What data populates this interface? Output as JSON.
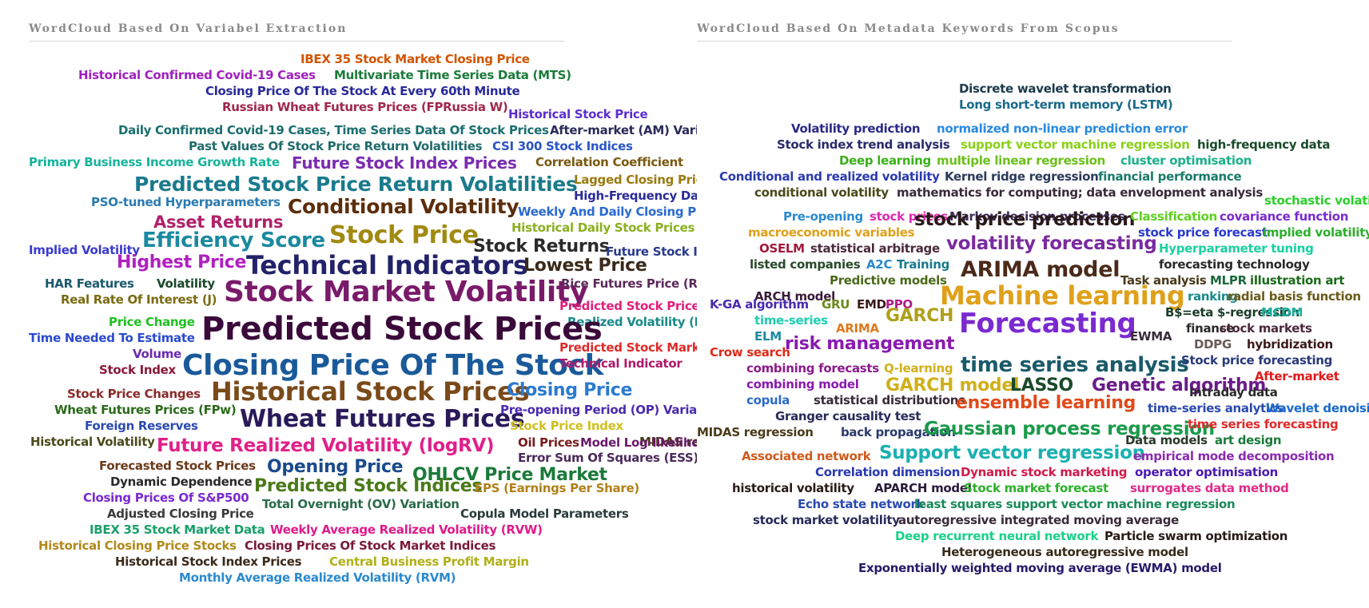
{
  "left": {
    "title": "WordCloud Based On Variabel Extraction",
    "words": [
      {
        "text": "IBEX 35 Stock Market Closing Price",
        "color": "#d35400"
      },
      {
        "text": "Historical Confirmed Covid-19 Cases",
        "color": "#a020c0"
      },
      {
        "text": "Multivariate Time Series Data (MTS)",
        "color": "#1b7a3a"
      },
      {
        "text": "Closing Price Of The Stock At Every 60th Minute",
        "color": "#2a2a9c"
      },
      {
        "text": "Russian Wheat Futures Prices (FPRussia W)",
        "color": "#a0284c"
      },
      {
        "text": "Historical Stock Price",
        "color": "#5b2fd0"
      },
      {
        "text": "Daily Confirmed Covid-19 Cases, Time Series Data Of Stock Prices",
        "color": "#1b6e6e"
      },
      {
        "text": "After-market (AM) Variation",
        "color": "#2a2a5a"
      },
      {
        "text": "Past Values Of Stock Price Return Volatilities",
        "color": "#216a6a"
      },
      {
        "text": "CSI 300 Stock Indices",
        "color": "#2a55c4"
      },
      {
        "text": "Primary Business Income Growth Rate",
        "color": "#16b39a"
      },
      {
        "text": "Future Stock Index Prices",
        "color": "#7a2bb0"
      },
      {
        "text": "Correlation Coefficient",
        "color": "#7a5a10"
      },
      {
        "text": "Predicted Stock Price Return Volatilities",
        "color": "#1a7a8c"
      },
      {
        "text": "Lagged Closing Prices",
        "color": "#9a7a10"
      },
      {
        "text": "PSO-tuned Hyperparameters",
        "color": "#2a7ab0"
      },
      {
        "text": "High-Frequency Data",
        "color": "#2a2a9c"
      },
      {
        "text": "Conditional Volatility",
        "color": "#5c2e0c"
      },
      {
        "text": "Asset Returns",
        "color": "#b0226a"
      },
      {
        "text": "Weekly And Daily Closing Prices",
        "color": "#2a6ad0"
      },
      {
        "text": "Efficiency Score",
        "color": "#1a8aa0"
      },
      {
        "text": "Stock Price",
        "color": "#a08a10"
      },
      {
        "text": "Historical Daily Stock Prices",
        "color": "#8ab020"
      },
      {
        "text": "Stock Returns",
        "color": "#2a2a2a"
      },
      {
        "text": "Implied Volatility",
        "color": "#3a3ad0"
      },
      {
        "text": "Future Stock Index",
        "color": "#2a3a8c"
      },
      {
        "text": "Highest Price",
        "color": "#b020c0"
      },
      {
        "text": "Technical Indicators",
        "color": "#22226a"
      },
      {
        "text": "Lowest Price",
        "color": "#3a2a1a"
      },
      {
        "text": "HAR Features",
        "color": "#1a5a6a"
      },
      {
        "text": "Volatility",
        "color": "#1a4a2a"
      },
      {
        "text": "Stock Market Volatility",
        "color": "#7a1a6a"
      },
      {
        "text": "Rice Futures Price (RFP)",
        "color": "#5a2a5a"
      },
      {
        "text": "Real Rate Of Interest (J)",
        "color": "#7a6a10"
      },
      {
        "text": "Predicted Stock Prices (",
        "color": "#e0207a"
      },
      {
        "text": "Price Change",
        "color": "#20c020"
      },
      {
        "text": "Realized Volatility (RV)",
        "color": "#1a8a8a"
      },
      {
        "text": "Predicted Stock Prices",
        "color": "#3a0a3a"
      },
      {
        "text": "Time Needed To Estimate",
        "color": "#2a4ad0"
      },
      {
        "text": "Volume",
        "color": "#6a2ab0"
      },
      {
        "text": "Predicted Stock Market Index",
        "color": "#e02a2a"
      },
      {
        "text": "Stock Index",
        "color": "#8a1a3a"
      },
      {
        "text": "Closing Price Of The Stock",
        "color": "#1a5a9a"
      },
      {
        "text": "Technical Indicator",
        "color": "#b01a6a"
      },
      {
        "text": "Stock Price Changes",
        "color": "#8a2a2a"
      },
      {
        "text": "Historical Stock Prices",
        "color": "#7a4a1a"
      },
      {
        "text": "Closing Price",
        "color": "#2a7ad0"
      },
      {
        "text": "Wheat Futures Prices (FPw)",
        "color": "#2a6a1a"
      },
      {
        "text": "Wheat Futures Prices",
        "color": "#2a1a5a"
      },
      {
        "text": "Pre-opening Period (OP) Variation",
        "color": "#4a2ab0"
      },
      {
        "text": "Foreign Reserves",
        "color": "#2a4ab0"
      },
      {
        "text": "Stock Price Index",
        "color": "#d0c020"
      },
      {
        "text": "MIDAS regression",
        "color": "#4a3a1a"
      },
      {
        "text": "Historical Volatility",
        "color": "#4a4a1a"
      },
      {
        "text": "Future Realized Volatility (logRV)",
        "color": "#e0208a"
      },
      {
        "text": "Oil Prices",
        "color": "#7a1a1a"
      },
      {
        "text": "Model Log-likelihood",
        "color": "#6a1a6a"
      },
      {
        "text": "Error Sum Of Squares (ESS)",
        "color": "#4a2a5a"
      },
      {
        "text": "Forecasted Stock Prices",
        "color": "#6a3a1a"
      },
      {
        "text": "Opening Price",
        "color": "#1a4a8a"
      },
      {
        "text": "OHLCV Price Market",
        "color": "#1a7a3a"
      },
      {
        "text": "Dynamic Dependence",
        "color": "#2a2a2a"
      },
      {
        "text": "Predicted Stock Indices",
        "color": "#4a7a1a"
      },
      {
        "text": "EPS (Earnings Per Share)",
        "color": "#b0801a"
      },
      {
        "text": "Closing Prices Of S&P500",
        "color": "#7a2ad0"
      },
      {
        "text": "Total Overnight (OV) Variation",
        "color": "#2a6a4a"
      },
      {
        "text": "Adjusted Closing Price",
        "color": "#3a3a3a"
      },
      {
        "text": "Copula Model Parameters",
        "color": "#2a3a3a"
      },
      {
        "text": "IBEX 35 Stock Market Data",
        "color": "#1aa06a"
      },
      {
        "text": "Weekly Average Realized Volatility (RVW)",
        "color": "#e01a8a"
      },
      {
        "text": "Historical Closing Price Stocks",
        "color": "#b08a1a"
      },
      {
        "text": "Closing Prices Of Stock Market Indices",
        "color": "#7a1a3a"
      },
      {
        "text": "Historical Stock Index Prices",
        "color": "#3a2a1a"
      },
      {
        "text": "Central Business Profit Margin",
        "color": "#b0b01a"
      },
      {
        "text": "Monthly Average Realized Volatility (RVM)",
        "color": "#2a8ad0"
      }
    ]
  },
  "right": {
    "title": "WordCloud Based On Metadata Keywords From Scopus",
    "words": [
      {
        "text": "Discrete wavelet transformation",
        "color": "#1a3a4a"
      },
      {
        "text": "Long short-term memory (LSTM)",
        "color": "#1a6a8a"
      },
      {
        "text": "Volatility prediction",
        "color": "#2a2a8a"
      },
      {
        "text": "normalized non-linear prediction error",
        "color": "#2a8ae0"
      },
      {
        "text": "Stock index trend analysis",
        "color": "#2a2a6a"
      },
      {
        "text": "support vector machine regression",
        "color": "#8ad01a"
      },
      {
        "text": "high-frequency data",
        "color": "#1a4a2a"
      },
      {
        "text": "Deep learning",
        "color": "#3ab01a"
      },
      {
        "text": "multiple linear regression",
        "color": "#6ac01a"
      },
      {
        "text": "cluster optimisation",
        "color": "#1ab08a"
      },
      {
        "text": "Conditional and realized volatility",
        "color": "#2a3ab0"
      },
      {
        "text": "Kernel ridge regression",
        "color": "#2a3a5a"
      },
      {
        "text": "financial performance",
        "color": "#1a7a6a"
      },
      {
        "text": "conditional volatility",
        "color": "#4a4a1a"
      },
      {
        "text": "mathematics for computing; data envelopment analysis",
        "color": "#3a2a3a"
      },
      {
        "text": "stochastic volatility",
        "color": "#2ad02a"
      },
      {
        "text": "Pre-opening",
        "color": "#2a8ad0"
      },
      {
        "text": "stock prices",
        "color": "#e02ab0"
      },
      {
        "text": "Markov decision processes",
        "color": "#3a2a5a"
      },
      {
        "text": "stock price prediction",
        "color": "#2a1a1a"
      },
      {
        "text": "Classification",
        "color": "#60d020"
      },
      {
        "text": "covariance function",
        "color": "#7a2ad0"
      },
      {
        "text": "macroeconomic variables",
        "color": "#e0a01a"
      },
      {
        "text": "volatility forecasting",
        "color": "#7a2aa0"
      },
      {
        "text": "stock price forecast",
        "color": "#2a3ad0"
      },
      {
        "text": "implied volatility",
        "color": "#2ab02a"
      },
      {
        "text": "OSELM",
        "color": "#a01a3a"
      },
      {
        "text": "statistical arbitrage",
        "color": "#4a2a3a"
      },
      {
        "text": "Hyperparameter tuning",
        "color": "#1ad0a0"
      },
      {
        "text": "listed companies",
        "color": "#2a4a2a"
      },
      {
        "text": "A2C",
        "color": "#2a8ad0"
      },
      {
        "text": "Training",
        "color": "#1a7a8a"
      },
      {
        "text": "forecasting technology",
        "color": "#2a2a2a"
      },
      {
        "text": "ARIMA model",
        "color": "#4a2a1a"
      },
      {
        "text": "Predictive models",
        "color": "#4a6a1a"
      },
      {
        "text": "Task analysis",
        "color": "#4a3a1a"
      },
      {
        "text": "MLPR",
        "color": "#1a6a3a"
      },
      {
        "text": "illustration art",
        "color": "#1a6a1a"
      },
      {
        "text": "ARCH model",
        "color": "#3a1a3a"
      },
      {
        "text": "Machine learning",
        "color": "#e0a01a"
      },
      {
        "text": "ranking",
        "color": "#1a8a8a"
      },
      {
        "text": "radial basis function",
        "color": "#6a5a1a"
      },
      {
        "text": "K-GA algorithm",
        "color": "#4a2ab0"
      },
      {
        "text": "GRU",
        "color": "#6a8a1a"
      },
      {
        "text": "EMD",
        "color": "#3a1a1a"
      },
      {
        "text": "PPO",
        "color": "#b01a8a"
      },
      {
        "text": "GARCH",
        "color": "#b0a01a"
      },
      {
        "text": "B$=eta $-regression",
        "color": "#1a3a2a"
      },
      {
        "text": "MCDM",
        "color": "#1ab0a0"
      },
      {
        "text": "time-series",
        "color": "#1ad0b0"
      },
      {
        "text": "ARIMA",
        "color": "#e07a1a"
      },
      {
        "text": "Forecasting",
        "color": "#7a2ad0"
      },
      {
        "text": "EWMA",
        "color": "#3a2a3a"
      },
      {
        "text": "finance",
        "color": "#2a2a2a"
      },
      {
        "text": "stock markets",
        "color": "#4a2a3a"
      },
      {
        "text": "ELM",
        "color": "#1a8aa0"
      },
      {
        "text": "risk management",
        "color": "#8a1ab0"
      },
      {
        "text": "DDPG",
        "color": "#6a5a5a"
      },
      {
        "text": "hybridization",
        "color": "#3a1a1a"
      },
      {
        "text": "Crow search",
        "color": "#e02a1a"
      },
      {
        "text": "time series analysis",
        "color": "#1a5a6a"
      },
      {
        "text": "Stock price forecasting",
        "color": "#2a3a7a"
      },
      {
        "text": "combining forecasts",
        "color": "#8a1a8a"
      },
      {
        "text": "Q-learning",
        "color": "#d0b01a"
      },
      {
        "text": "After-market",
        "color": "#e01a1a"
      },
      {
        "text": "combining model",
        "color": "#8a1ab0"
      },
      {
        "text": "GARCH model",
        "color": "#d0b01a"
      },
      {
        "text": "LASSO",
        "color": "#1a4a2a"
      },
      {
        "text": "Genetic algorithm",
        "color": "#6a1a8a"
      },
      {
        "text": "Intraday data",
        "color": "#2a2a2a"
      },
      {
        "text": "copula",
        "color": "#2a6ad0"
      },
      {
        "text": "statistical distributions",
        "color": "#3a2a3a"
      },
      {
        "text": "ensemble learning",
        "color": "#e04a1a"
      },
      {
        "text": "time-series analytics",
        "color": "#2a4ab0"
      },
      {
        "text": "Wavelet denoising",
        "color": "#1a6ad0"
      },
      {
        "text": "Granger causality test",
        "color": "#2a2a5a"
      },
      {
        "text": "MIDAS regression",
        "color": "#4a3a1a"
      },
      {
        "text": "back propagation",
        "color": "#2a3a6a"
      },
      {
        "text": "Gaussian process regression",
        "color": "#1a9a4a"
      },
      {
        "text": "time series forecasting",
        "color": "#e02a2a"
      },
      {
        "text": "Data models",
        "color": "#2a3a2a"
      },
      {
        "text": "art design",
        "color": "#1a7a3a"
      },
      {
        "text": "Associated network",
        "color": "#d05a1a"
      },
      {
        "text": "Support vector regression",
        "color": "#1ab0b0"
      },
      {
        "text": "empirical mode decomposition",
        "color": "#8a2ab0"
      },
      {
        "text": "Correlation dimension",
        "color": "#2a3ab0"
      },
      {
        "text": "Dynamic stock marketing",
        "color": "#d01a4a"
      },
      {
        "text": "operator optimisation",
        "color": "#4a1ab0"
      },
      {
        "text": "historical volatility",
        "color": "#2a1a1a"
      },
      {
        "text": "APARCH model",
        "color": "#2a1a3a"
      },
      {
        "text": "Stock market forecast",
        "color": "#2ab02a"
      },
      {
        "text": "surrogates data method",
        "color": "#e02a8a"
      },
      {
        "text": "Echo state network",
        "color": "#2a4ab0"
      },
      {
        "text": "least squares support vector machine regression",
        "color": "#1a8a5a"
      },
      {
        "text": "stock market volatility",
        "color": "#2a2a5a"
      },
      {
        "text": "autoregressive integrated moving average",
        "color": "#3a2a3a"
      },
      {
        "text": "Deep recurrent neural network",
        "color": "#1ad08a"
      },
      {
        "text": "Particle swarm optimization",
        "color": "#2a1a1a"
      },
      {
        "text": "Heterogeneous autoregressive model",
        "color": "#3a2a1a"
      },
      {
        "text": "Exponentially weighted moving average (EWMA) model",
        "color": "#2a1a6a"
      }
    ]
  }
}
